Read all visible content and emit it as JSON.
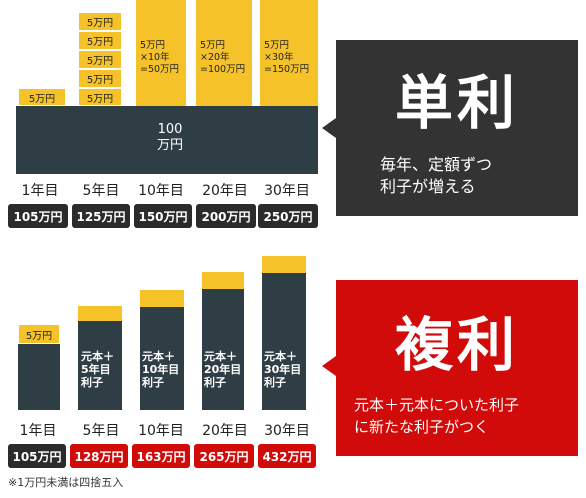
{
  "simple": {
    "base_label": "100\n万円",
    "add_unit": "5万円",
    "col10": "5万円\n×10年\n=50万円",
    "col20": "5万円\n×20年\n=100万円",
    "col30": "5万円\n×30年\n=150万円",
    "title": "単利",
    "desc": "毎年、定額ずつ\n利子が増える",
    "years": [
      "1年目",
      "5年目",
      "10年目",
      "20年目",
      "30年目"
    ],
    "amounts": [
      "105万円",
      "125万円",
      "150万円",
      "200万円",
      "250万円"
    ]
  },
  "compound": {
    "add_unit": "5万円",
    "bar_labels": [
      "元本＋\n5年目\n利子",
      "元本＋\n10年目\n利子",
      "元本＋\n20年目\n利子",
      "元本＋\n30年目\n利子"
    ],
    "title": "複利",
    "desc": "元本＋元本についた利子\nに新たな利子がつく",
    "years": [
      "1年目",
      "5年目",
      "10年目",
      "20年目",
      "30年目"
    ],
    "amounts": [
      "105万円",
      "128万円",
      "163万円",
      "265万円",
      "432万円"
    ]
  },
  "footnote": "※1万円未満は四捨五入",
  "colors": {
    "dark": "#2f3d45",
    "yellow": "#f5c22a",
    "red": "#d10a0a",
    "panel": "#333333"
  }
}
